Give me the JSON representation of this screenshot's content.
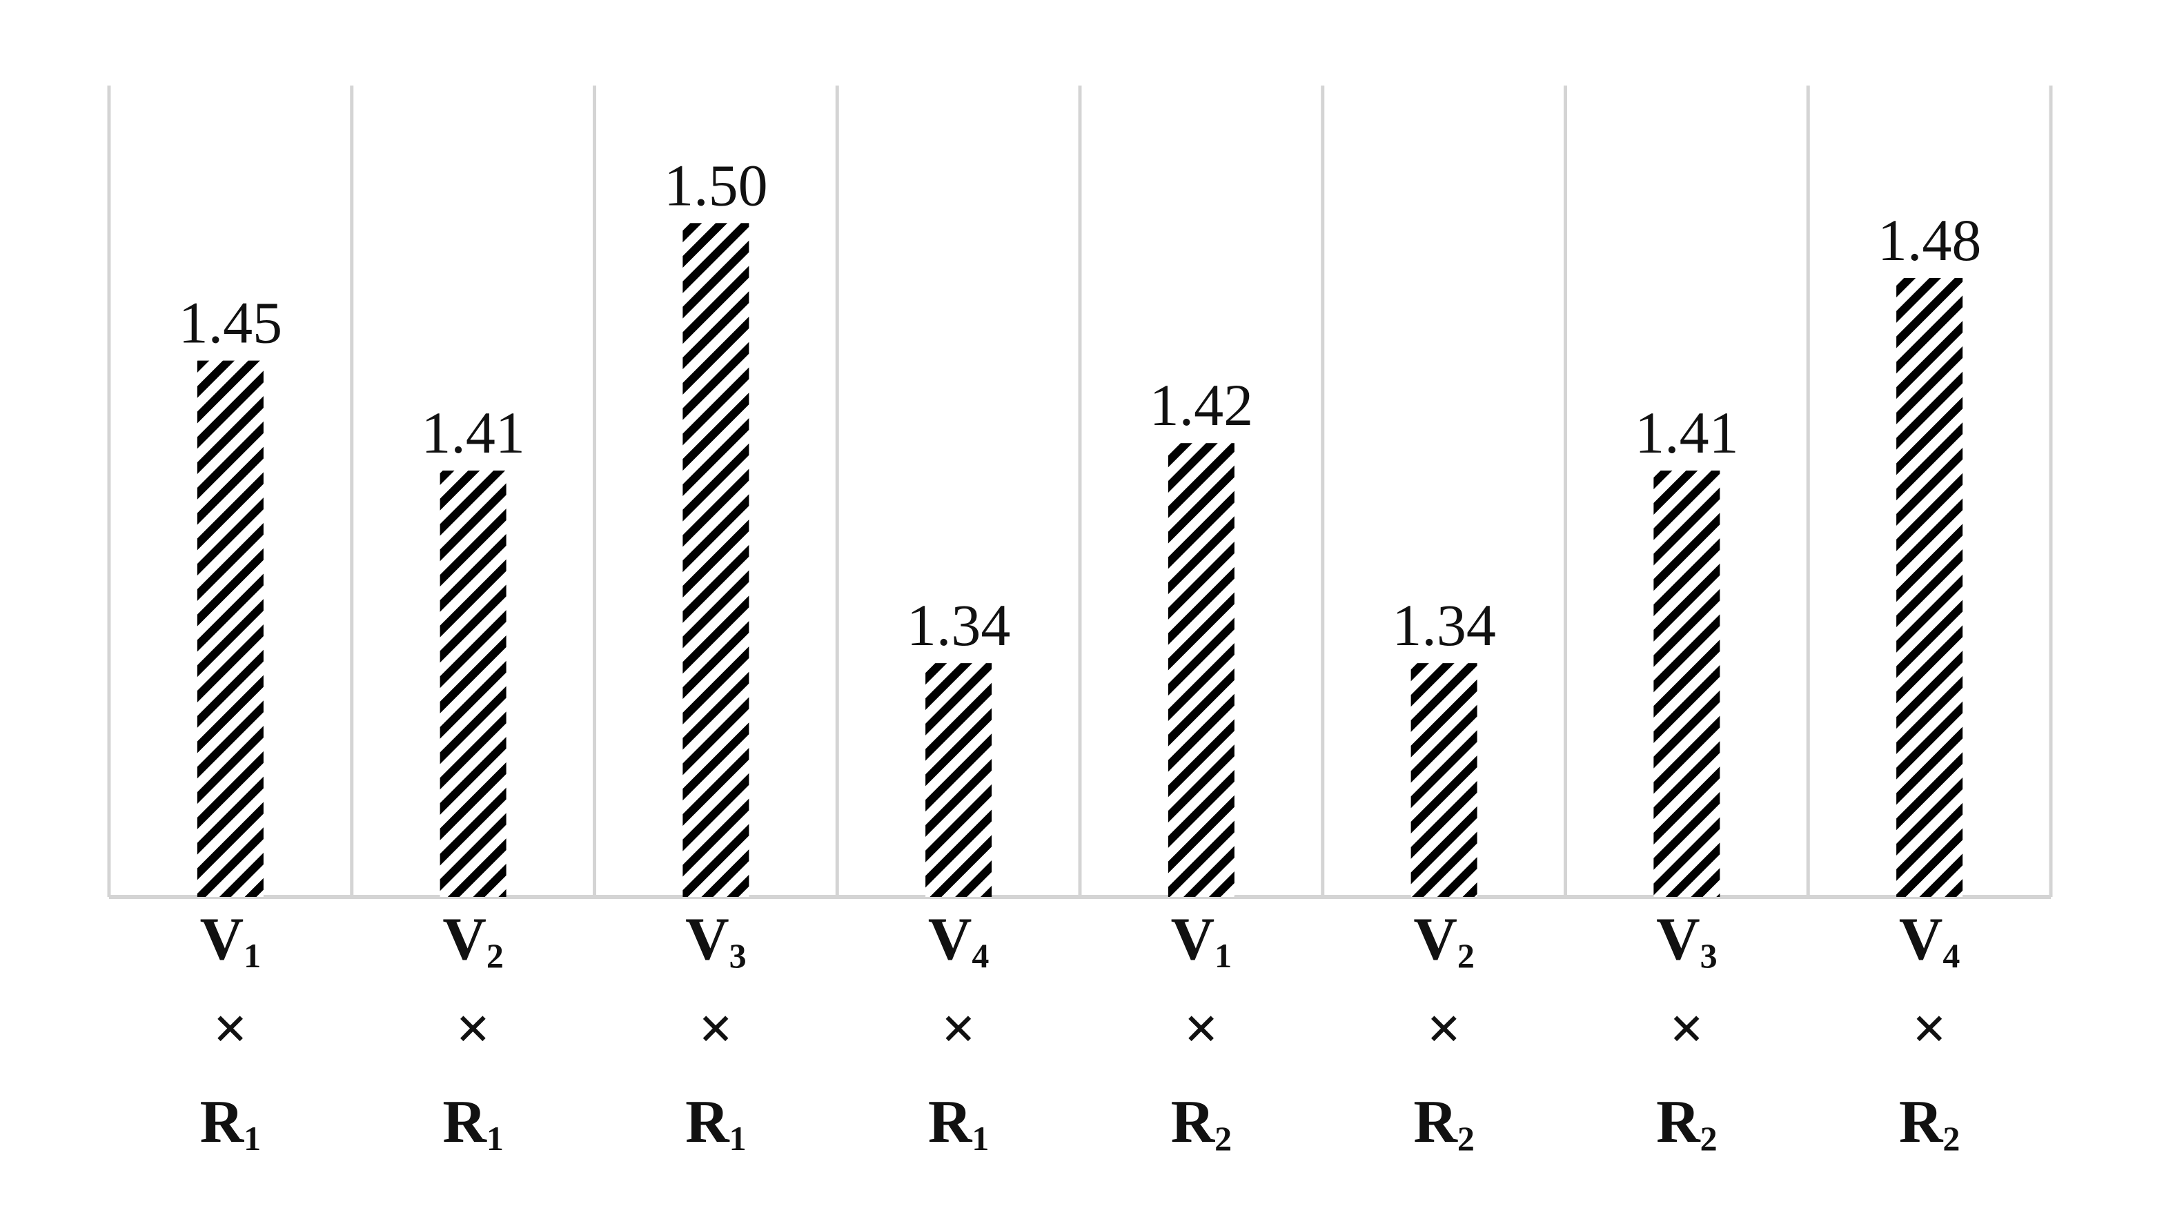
{
  "chart_data": {
    "type": "bar",
    "categories": [
      {
        "var": "V",
        "var_sub": "1",
        "op": "×",
        "rep": "R",
        "rep_sub": "1"
      },
      {
        "var": "V",
        "var_sub": "2",
        "op": "×",
        "rep": "R",
        "rep_sub": "1"
      },
      {
        "var": "V",
        "var_sub": "3",
        "op": "×",
        "rep": "R",
        "rep_sub": "1"
      },
      {
        "var": "V",
        "var_sub": "4",
        "op": "×",
        "rep": "R",
        "rep_sub": "1"
      },
      {
        "var": "V",
        "var_sub": "1",
        "op": "×",
        "rep": "R",
        "rep_sub": "2"
      },
      {
        "var": "V",
        "var_sub": "2",
        "op": "×",
        "rep": "R",
        "rep_sub": "2"
      },
      {
        "var": "V",
        "var_sub": "3",
        "op": "×",
        "rep": "R",
        "rep_sub": "2"
      },
      {
        "var": "V",
        "var_sub": "4",
        "op": "×",
        "rep": "R",
        "rep_sub": "2"
      }
    ],
    "values": [
      1.45,
      1.41,
      1.5,
      1.34,
      1.42,
      1.34,
      1.41,
      1.48
    ],
    "value_labels": [
      "1.45",
      "1.41",
      "1.50",
      "1.34",
      "1.42",
      "1.34",
      "1.41",
      "1.48"
    ],
    "ylim": [
      1.255,
      1.55
    ],
    "grid": "vertical separators",
    "legend": "none",
    "bar_fill": "diagonal-hatch",
    "colors": {
      "hatch": "#000000",
      "grid": "#d4d4d4",
      "text": "#111111"
    }
  }
}
